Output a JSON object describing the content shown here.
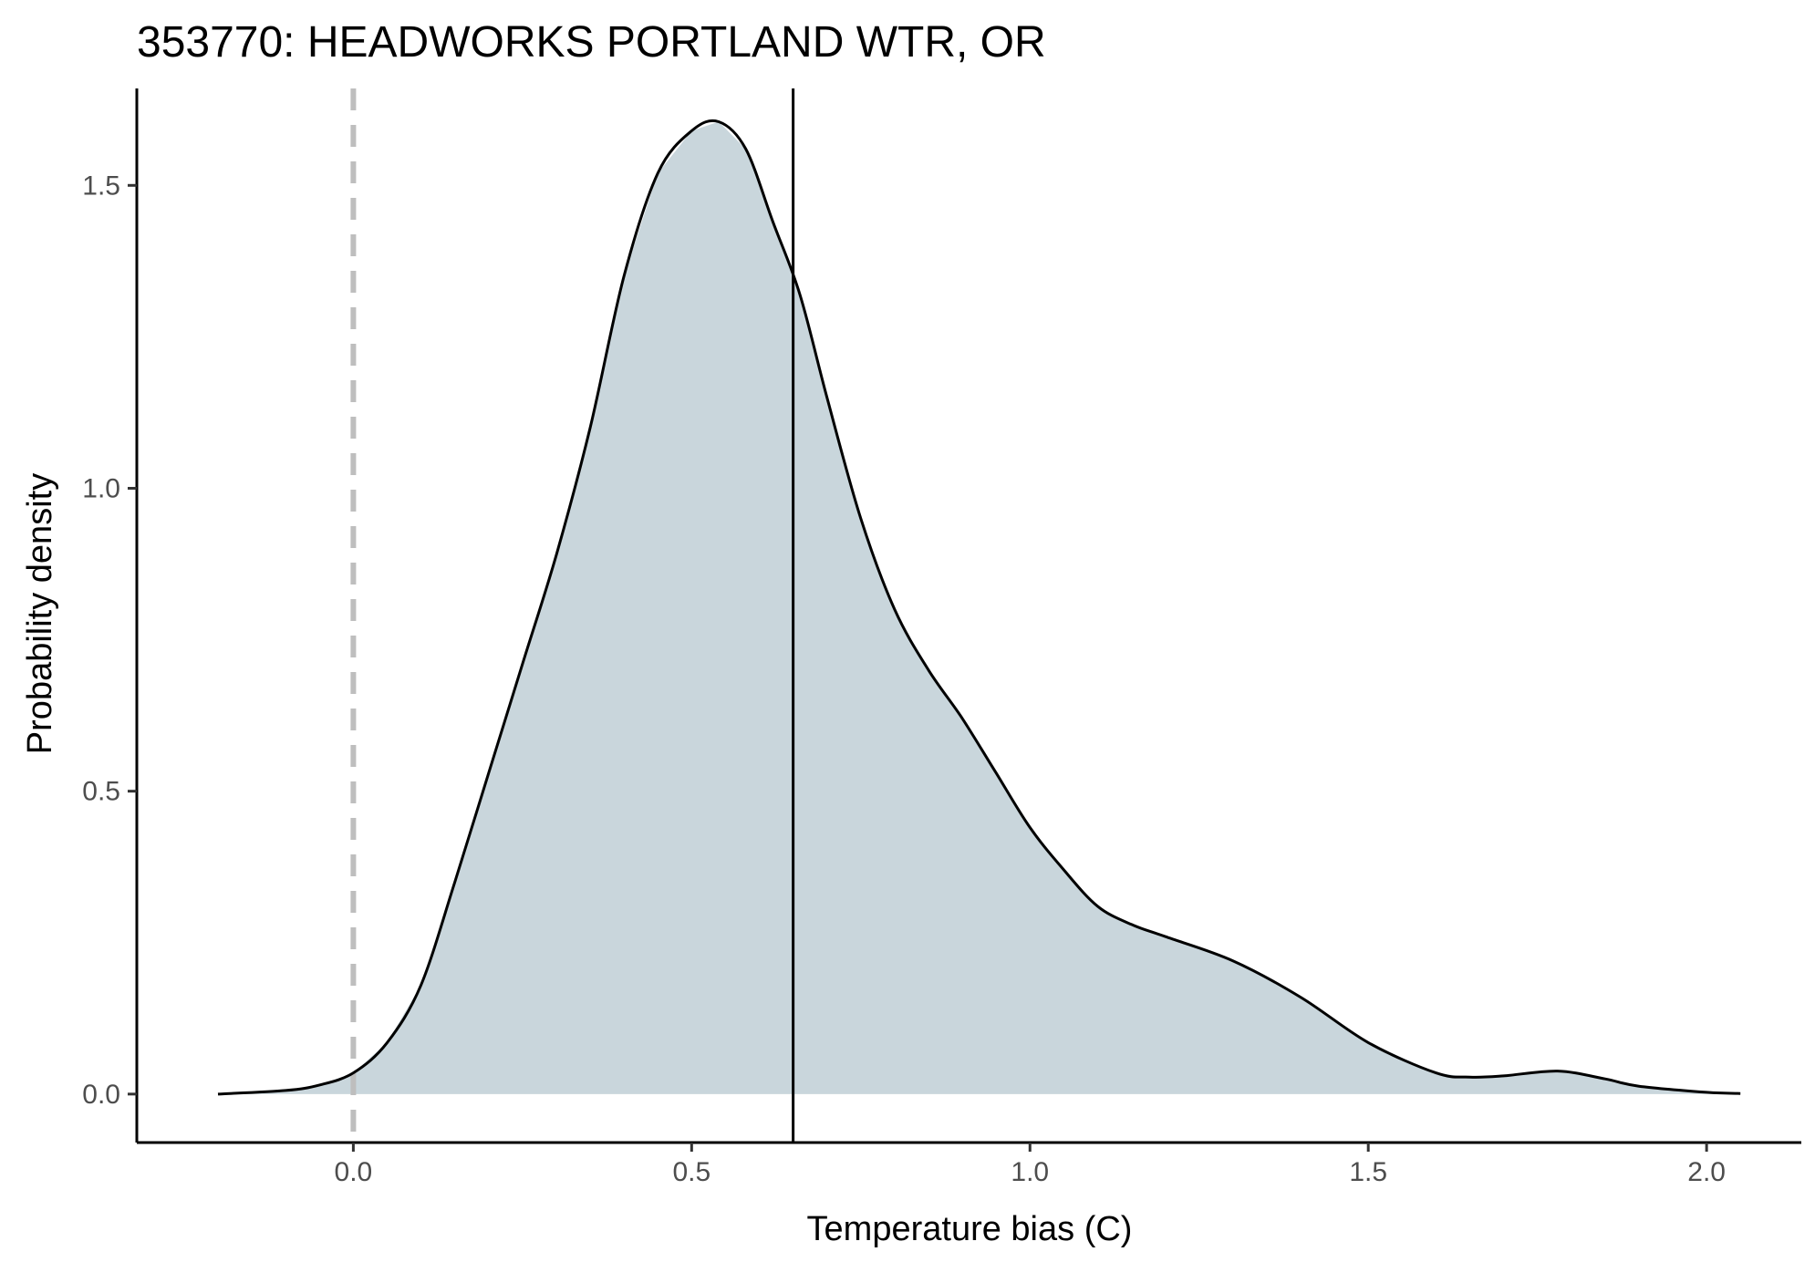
{
  "chart_data": {
    "type": "area",
    "title": "353770: HEADWORKS PORTLAND WTR, OR",
    "xlabel": "Temperature bias (C)",
    "ylabel": "Probability density",
    "xlim": [
      -0.32,
      2.14
    ],
    "ylim": [
      -0.08,
      1.66
    ],
    "x_ticks": [
      0.0,
      0.5,
      1.0,
      1.5,
      2.0
    ],
    "x_tick_labels": [
      "0.0",
      "0.5",
      "1.0",
      "1.5",
      "2.0"
    ],
    "y_ticks": [
      0.0,
      0.5,
      1.0,
      1.5
    ],
    "y_tick_labels": [
      "0.0",
      "0.5",
      "1.0",
      "1.5"
    ],
    "grid": false,
    "fill_color": "#c9d6dc",
    "line_color": "#000000",
    "reference_line_color": "#bebebe",
    "reference_line_x": 0.0,
    "reference_line_style": "dashed",
    "mean_line_x": 0.65,
    "series": [
      {
        "x": [
          -0.2,
          -0.1,
          -0.05,
          0.0,
          0.05,
          0.1,
          0.15,
          0.2,
          0.25,
          0.3,
          0.35,
          0.4,
          0.45,
          0.5,
          0.54,
          0.58,
          0.62,
          0.66,
          0.7,
          0.75,
          0.8,
          0.85,
          0.9,
          0.95,
          1.0,
          1.05,
          1.1,
          1.15,
          1.2,
          1.3,
          1.4,
          1.5,
          1.6,
          1.65,
          1.7,
          1.78,
          1.85,
          1.9,
          2.0,
          2.05
        ],
        "y": [
          0.0,
          0.006,
          0.015,
          0.035,
          0.085,
          0.18,
          0.35,
          0.53,
          0.71,
          0.89,
          1.1,
          1.35,
          1.52,
          1.59,
          1.605,
          1.56,
          1.44,
          1.32,
          1.15,
          0.95,
          0.8,
          0.7,
          0.62,
          0.53,
          0.44,
          0.37,
          0.31,
          0.28,
          0.26,
          0.22,
          0.16,
          0.085,
          0.035,
          0.028,
          0.03,
          0.038,
          0.025,
          0.013,
          0.003,
          0.001
        ]
      }
    ]
  }
}
